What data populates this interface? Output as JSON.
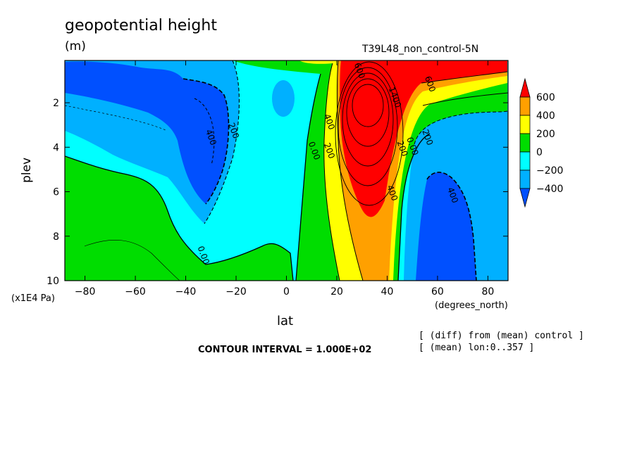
{
  "chart_data": {
    "type": "contour",
    "title": "geopotential height",
    "units": "(m)",
    "run_label": "T39L48_non_control-5N",
    "xlabel": "lat",
    "x_units": "(degrees_north)",
    "ylabel": "plev",
    "y_units": "(x1E4 Pa)",
    "xlim": [
      -88,
      88
    ],
    "ylim": [
      0.1,
      10
    ],
    "x_ticks": [
      -80,
      -60,
      -40,
      -20,
      0,
      20,
      40,
      60,
      80
    ],
    "y_ticks": [
      2,
      4,
      6,
      8,
      10
    ],
    "y_reversed": true,
    "contour_interval": "CONTOUR INTERVAL = 1.000E+02",
    "notes": [
      "[ (diff) from (mean) control ]",
      "[ (mean) lon:0..357 ]"
    ],
    "colorbar": {
      "labels": [
        "600",
        "400",
        "200",
        "0",
        "−200",
        "−400"
      ],
      "colors": [
        "#0050ff",
        "#00b0ff",
        "#00ffff",
        "#00dd00",
        "#ffff00",
        "#ffa000",
        "#ff0000"
      ]
    },
    "contour_labels": [
      {
        "text": "400",
        "lat": -31,
        "p": 3.6
      },
      {
        "text": "200",
        "lat": -22,
        "p": 3.3
      },
      {
        "text": "0.00",
        "lat": -34,
        "p": 8.9
      },
      {
        "text": "0.00",
        "lat": 10,
        "p": 4.2
      },
      {
        "text": "200",
        "lat": 16,
        "p": 4.2
      },
      {
        "text": "400",
        "lat": 16,
        "p": 2.9
      },
      {
        "text": "600",
        "lat": 28,
        "p": 0.6
      },
      {
        "text": "1400",
        "lat": 42,
        "p": 1.8
      },
      {
        "text": "400",
        "lat": 41,
        "p": 6.1
      },
      {
        "text": "200",
        "lat": 45,
        "p": 4.1
      },
      {
        "text": "0.00",
        "lat": 49,
        "p": 4.0
      },
      {
        "text": "200",
        "lat": 55,
        "p": 3.6
      },
      {
        "text": "400",
        "lat": 65,
        "p": 6.2
      },
      {
        "text": "600",
        "lat": 56,
        "p": 1.2
      }
    ]
  }
}
